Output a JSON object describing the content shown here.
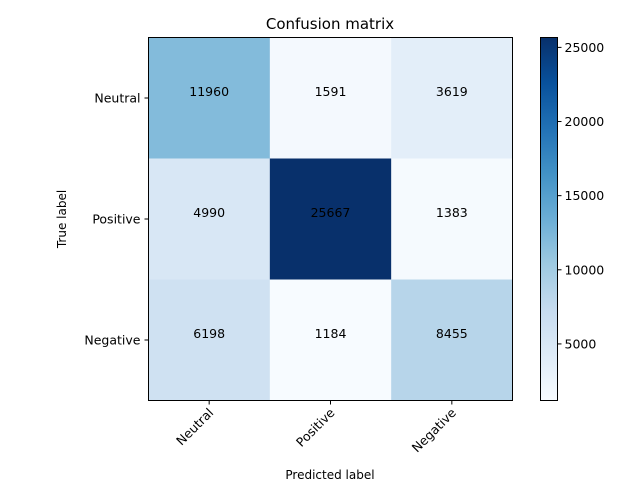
{
  "chart_data": {
    "type": "heatmap",
    "title": "Confusion matrix",
    "xlabel": "Predicted label",
    "ylabel": "True label",
    "x_categories": [
      "Neutral",
      "Positive",
      "Negative"
    ],
    "y_categories": [
      "Neutral",
      "Positive",
      "Negative"
    ],
    "values": [
      [
        11960,
        1591,
        3619
      ],
      [
        4990,
        25667,
        1383
      ],
      [
        6198,
        1184,
        8455
      ]
    ],
    "colormap": "Blues",
    "color_range": [
      1184,
      25667
    ],
    "colorbar_ticks": [
      "5000",
      "10000",
      "15000",
      "20000",
      "25000"
    ],
    "x_tick_rotation": "45",
    "grid": false
  }
}
